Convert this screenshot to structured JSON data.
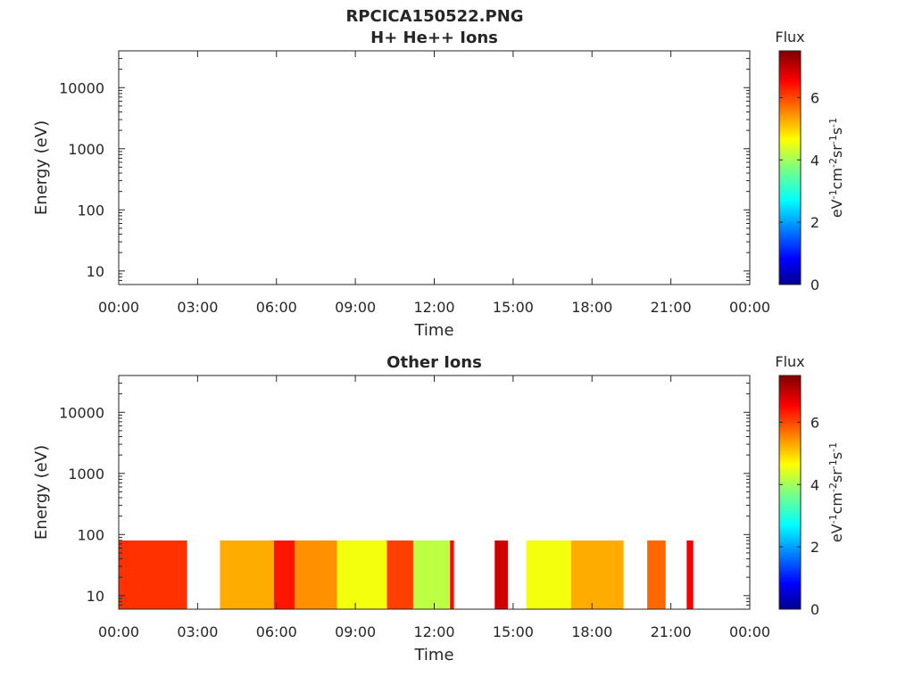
{
  "figure_title": "RPCICA150522.PNG",
  "chart_data": [
    {
      "type": "heatmap",
      "title": "H+ He++ Ions",
      "xlabel": "Time",
      "ylabel": "Energy (eV)",
      "x_ticks": [
        "00:00",
        "03:00",
        "06:00",
        "09:00",
        "12:00",
        "15:00",
        "18:00",
        "21:00",
        "00:00"
      ],
      "xlim_hours": [
        0,
        24
      ],
      "y_scale": "log",
      "y_ticks": [
        10,
        100,
        1000,
        10000
      ],
      "y_tick_labels": [
        "10",
        "100",
        "1000",
        "10000"
      ],
      "ylim": [
        6,
        40000
      ],
      "colorbar": {
        "title": "Flux",
        "label": "eV-1cm-2sr-1s-1",
        "label_parts": [
          "eV",
          "-1",
          "cm",
          "-2",
          "sr",
          "-1",
          "s",
          "-1"
        ],
        "ticks": [
          0,
          2,
          4,
          6
        ],
        "range": [
          0,
          7.5
        ],
        "colormap": "jet"
      },
      "segments": []
    },
    {
      "type": "heatmap",
      "title": "Other Ions",
      "xlabel": "Time",
      "ylabel": "Energy (eV)",
      "x_ticks": [
        "00:00",
        "03:00",
        "06:00",
        "09:00",
        "12:00",
        "15:00",
        "18:00",
        "21:00",
        "00:00"
      ],
      "xlim_hours": [
        0,
        24
      ],
      "y_scale": "log",
      "y_ticks": [
        10,
        100,
        1000,
        10000
      ],
      "y_tick_labels": [
        "10",
        "100",
        "1000",
        "10000"
      ],
      "ylim": [
        6,
        40000
      ],
      "energy_range_eV": [
        6,
        80
      ],
      "colorbar": {
        "title": "Flux",
        "label": "eV-1cm-2sr-1s-1",
        "label_parts": [
          "eV",
          "-1",
          "cm",
          "-2",
          "sr",
          "-1",
          "s",
          "-1"
        ],
        "ticks": [
          0,
          2,
          4,
          6
        ],
        "range": [
          0,
          7.5
        ],
        "colormap": "jet"
      },
      "segments": [
        {
          "start_h": 0.0,
          "end_h": 2.6,
          "flux": 6.2
        },
        {
          "start_h": 3.85,
          "end_h": 5.9,
          "flux": 5.3
        },
        {
          "start_h": 5.9,
          "end_h": 6.7,
          "flux": 6.4
        },
        {
          "start_h": 6.7,
          "end_h": 8.3,
          "flux": 5.5
        },
        {
          "start_h": 8.3,
          "end_h": 10.2,
          "flux": 4.6
        },
        {
          "start_h": 10.2,
          "end_h": 11.2,
          "flux": 6.1
        },
        {
          "start_h": 11.2,
          "end_h": 12.6,
          "flux": 4.2
        },
        {
          "start_h": 12.6,
          "end_h": 12.75,
          "flux": 6.5
        },
        {
          "start_h": 14.3,
          "end_h": 14.8,
          "flux": 6.9
        },
        {
          "start_h": 15.5,
          "end_h": 17.2,
          "flux": 4.6
        },
        {
          "start_h": 17.2,
          "end_h": 19.2,
          "flux": 5.3
        },
        {
          "start_h": 20.1,
          "end_h": 20.8,
          "flux": 5.8
        },
        {
          "start_h": 21.6,
          "end_h": 21.85,
          "flux": 6.6
        }
      ]
    }
  ]
}
